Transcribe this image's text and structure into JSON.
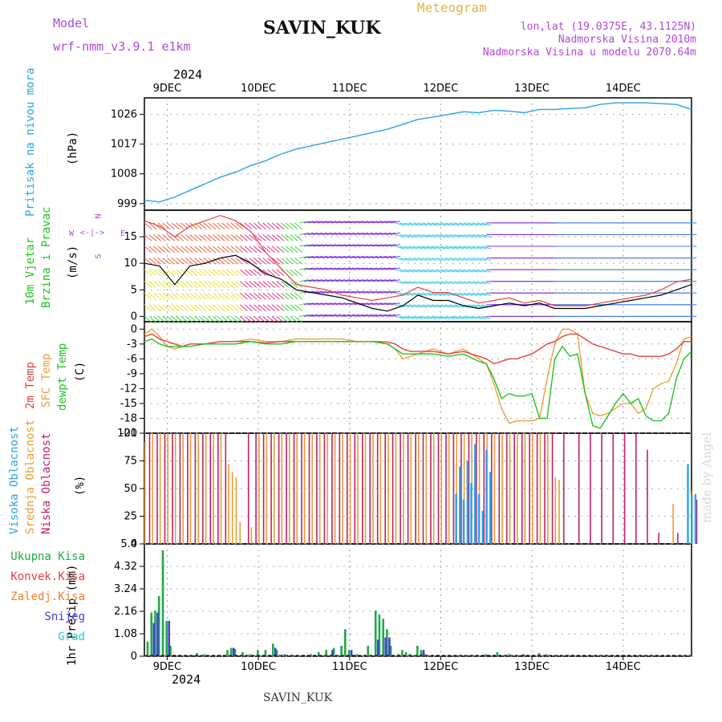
{
  "header": {
    "model_label": "Model",
    "model_name": "wrf-nmm_v3.9.1 e1km",
    "station": "SAVIN_KUK",
    "product": "Meteogram",
    "lonlat": "lon,lat (19.0375E, 43.1125N)",
    "elevation": "Nadmorska Visina 2010m",
    "model_elevation": "Nadmorska Visina u modelu 2070.64m",
    "year": "2024",
    "footer_station": "SAVIN_KUK",
    "watermark": "made by Angel"
  },
  "colors": {
    "pressure": "#2aa4e6",
    "temp2m": "#e84040",
    "sfctemp": "#e8a040",
    "dewpt": "#22c422",
    "high_cloud": "#2aa4e6",
    "mid_cloud": "#e8a030",
    "low_cloud": "#c0206a",
    "precip_total": "#22a848",
    "precip_conv": "#e84040",
    "precip_frozen": "#f08030",
    "snow": "#4040d8",
    "graupel": "#30c8c8",
    "purple_label": "#b04ad8"
  },
  "chart_data": [
    {
      "type": "line",
      "panel": "pressure",
      "ylabel_lines": [
        "Pritisak na nivou mora"
      ],
      "unit": "(hPa)",
      "ylim": [
        997,
        1031
      ],
      "yticks": [
        999,
        1008,
        1017,
        1026
      ],
      "x_hours": [
        0,
        4,
        8,
        12,
        16,
        20,
        24,
        28,
        32,
        36,
        40,
        44,
        48,
        52,
        56,
        60,
        64,
        68,
        72,
        76,
        80,
        84,
        88,
        92,
        96,
        100,
        104,
        108,
        112,
        116,
        120,
        124,
        132,
        140,
        144
      ],
      "values": [
        1000,
        999.5,
        1001,
        1003,
        1005,
        1007,
        1008.5,
        1010.5,
        1012,
        1014,
        1015.5,
        1016.5,
        1017.5,
        1018.5,
        1019.5,
        1020.5,
        1021.5,
        1023,
        1024.5,
        1025.2,
        1026,
        1026.8,
        1026.5,
        1027.2,
        1027,
        1026.5,
        1027.5,
        1027.5,
        1027.8,
        1028,
        1029,
        1029.5,
        1029.5,
        1029,
        1027.5
      ]
    },
    {
      "type": "line",
      "panel": "wind",
      "ylabel_lines": [
        "10m Vjetar",
        "Brzina i Pravac"
      ],
      "unit": "(m/s)",
      "compass": {
        "n": "N",
        "w": "W",
        "e": "E",
        "s": "S"
      },
      "ylim": [
        -1,
        20
      ],
      "yticks": [
        0,
        5,
        10,
        15
      ],
      "x_hours": [
        0,
        4,
        8,
        12,
        16,
        20,
        24,
        28,
        32,
        36,
        40,
        44,
        48,
        52,
        56,
        60,
        64,
        68,
        72,
        76,
        80,
        84,
        88,
        92,
        96,
        100,
        104,
        108,
        112,
        116,
        120,
        124,
        128,
        132,
        136,
        140,
        144
      ],
      "speed_black": [
        10,
        9.5,
        6,
        9.5,
        10,
        11,
        11.5,
        10,
        8,
        7,
        5,
        4.5,
        4,
        3.5,
        2.5,
        1.5,
        1,
        2,
        4,
        3,
        3,
        2,
        1.5,
        2,
        2.5,
        2,
        2.5,
        1.5,
        1.5,
        1.5,
        2,
        2.5,
        3,
        3.5,
        4,
        5,
        6
      ],
      "speed_red": [
        18,
        17,
        15,
        17,
        18,
        19,
        18,
        16,
        12,
        9,
        6,
        5.5,
        5,
        4,
        3.5,
        3,
        3.5,
        4,
        5.5,
        4.5,
        4.5,
        3.5,
        2.5,
        3,
        3.5,
        2.5,
        3,
        2,
        2,
        2,
        2.5,
        3,
        3.5,
        4,
        5,
        6.5,
        7
      ]
    },
    {
      "type": "line",
      "panel": "temperature",
      "ylabel_lines": [
        "2m Temp",
        "SFC Temp",
        "dewpt Temp"
      ],
      "unit": "(C)",
      "ylim": [
        -21,
        1.5
      ],
      "yticks": [
        0,
        -3,
        -6,
        -9,
        -12,
        -15,
        -18,
        -21
      ],
      "x_hours": [
        0,
        2,
        4,
        6,
        8,
        10,
        12,
        16,
        20,
        24,
        28,
        32,
        36,
        40,
        44,
        48,
        52,
        56,
        60,
        64,
        66,
        68,
        70,
        72,
        76,
        80,
        84,
        88,
        90,
        92,
        94,
        96,
        98,
        100,
        102,
        104,
        106,
        108,
        110,
        112,
        114,
        116,
        118,
        120,
        122,
        124,
        126,
        128,
        130,
        132,
        134,
        136,
        138,
        140,
        142,
        144
      ],
      "t2m": [
        -1.5,
        -1,
        -2,
        -2.5,
        -3,
        -3.5,
        -3,
        -3,
        -2.5,
        -2.5,
        -2.5,
        -2.8,
        -2.5,
        -2.5,
        -2.5,
        -2.5,
        -2.5,
        -2.5,
        -2.5,
        -2.6,
        -3,
        -4,
        -4.5,
        -4.5,
        -4.5,
        -5,
        -4.5,
        -5.5,
        -6,
        -7,
        -6.5,
        -6,
        -6,
        -5.5,
        -5,
        -4,
        -3,
        -2.5,
        -1.5,
        -1,
        -1,
        -2,
        -3,
        -3.5,
        -4,
        -4.5,
        -5,
        -5,
        -5.5,
        -5.5,
        -5.5,
        -5.5,
        -5,
        -4,
        -2.5,
        -2.5
      ],
      "sfc": [
        -1,
        0,
        -1.5,
        -3.5,
        -4,
        -3.5,
        -3,
        -3,
        -2.5,
        -2.5,
        -2,
        -2.5,
        -2.5,
        -2,
        -2,
        -2,
        -2,
        -2.5,
        -2.5,
        -3,
        -4,
        -6,
        -5.5,
        -5,
        -4,
        -5,
        -4,
        -6,
        -7,
        -11,
        -16,
        -19,
        -18.5,
        -18.5,
        -18.5,
        -18,
        -10,
        -3,
        0,
        0,
        -1,
        -13,
        -17,
        -17.5,
        -17,
        -16,
        -15,
        -15,
        -17,
        -16,
        -12,
        -11,
        -10.5,
        -7,
        -2,
        -1.5
      ],
      "dewpt": [
        -2.5,
        -2,
        -3,
        -3.5,
        -3.5,
        -3.5,
        -3.5,
        -3,
        -3,
        -3,
        -2.5,
        -3,
        -3,
        -2.5,
        -2.5,
        -2.5,
        -2.5,
        -2.5,
        -2.5,
        -3,
        -4,
        -5,
        -5,
        -5,
        -5,
        -5.5,
        -5,
        -6.5,
        -7,
        -10,
        -14,
        -13,
        -13.5,
        -13.5,
        -13,
        -18,
        -18,
        -6,
        -3.5,
        -5.5,
        -5,
        -13,
        -19.5,
        -20,
        -17.5,
        -15,
        -13,
        -15,
        -14,
        -17.5,
        -18.5,
        -18.5,
        -17,
        -10,
        -6,
        -4.5
      ]
    },
    {
      "type": "bar",
      "panel": "cloud",
      "ylabel_lines": [
        "Visoka Oblacnost",
        "Srednja Oblacnost",
        "Niska Oblacnost"
      ],
      "unit": "(%)",
      "ylim": [
        0,
        100
      ],
      "yticks": [
        0,
        25,
        50,
        75,
        100
      ],
      "high": [
        [
          82,
          45
        ],
        [
          83,
          70
        ],
        [
          84,
          40
        ],
        [
          85,
          75
        ],
        [
          86,
          55
        ],
        [
          87,
          90
        ],
        [
          88,
          45
        ],
        [
          89,
          30
        ],
        [
          90,
          85
        ],
        [
          91,
          65
        ],
        [
          143,
          72
        ],
        [
          144,
          44
        ],
        [
          145,
          45
        ]
      ],
      "mid": [
        [
          0,
          92
        ],
        [
          2,
          100
        ],
        [
          4,
          100
        ],
        [
          6,
          100
        ],
        [
          8,
          100
        ],
        [
          10,
          100
        ],
        [
          12,
          100
        ],
        [
          14,
          100
        ],
        [
          16,
          100
        ],
        [
          18,
          100
        ],
        [
          20,
          100
        ],
        [
          22,
          72
        ],
        [
          23,
          65
        ],
        [
          24,
          60
        ],
        [
          25,
          20
        ],
        [
          28,
          15
        ],
        [
          30,
          100
        ],
        [
          32,
          100
        ],
        [
          34,
          100
        ],
        [
          36,
          100
        ],
        [
          38,
          100
        ],
        [
          40,
          100
        ],
        [
          42,
          100
        ],
        [
          44,
          100
        ],
        [
          46,
          100
        ],
        [
          48,
          100
        ],
        [
          50,
          100
        ],
        [
          52,
          100
        ],
        [
          54,
          100
        ],
        [
          56,
          100
        ],
        [
          58,
          100
        ],
        [
          60,
          100
        ],
        [
          62,
          100
        ],
        [
          64,
          100
        ],
        [
          66,
          100
        ],
        [
          68,
          100
        ],
        [
          70,
          100
        ],
        [
          72,
          100
        ],
        [
          74,
          100
        ],
        [
          76,
          100
        ],
        [
          78,
          100
        ],
        [
          80,
          100
        ],
        [
          82,
          100
        ],
        [
          84,
          100
        ],
        [
          86,
          100
        ],
        [
          88,
          100
        ],
        [
          90,
          100
        ],
        [
          92,
          100
        ],
        [
          94,
          100
        ],
        [
          96,
          100
        ],
        [
          98,
          100
        ],
        [
          100,
          100
        ],
        [
          102,
          100
        ],
        [
          104,
          100
        ],
        [
          106,
          100
        ],
        [
          108,
          60
        ],
        [
          109,
          58
        ],
        [
          139,
          36
        ],
        [
          144,
          48
        ]
      ],
      "low": [
        [
          1,
          100
        ],
        [
          3,
          100
        ],
        [
          5,
          100
        ],
        [
          7,
          100
        ],
        [
          9,
          100
        ],
        [
          11,
          100
        ],
        [
          13,
          100
        ],
        [
          15,
          100
        ],
        [
          17,
          100
        ],
        [
          19,
          100
        ],
        [
          21,
          100
        ],
        [
          27,
          100
        ],
        [
          29,
          100
        ],
        [
          31,
          100
        ],
        [
          33,
          100
        ],
        [
          35,
          100
        ],
        [
          37,
          100
        ],
        [
          39,
          100
        ],
        [
          41,
          100
        ],
        [
          43,
          100
        ],
        [
          45,
          100
        ],
        [
          47,
          100
        ],
        [
          49,
          100
        ],
        [
          51,
          100
        ],
        [
          53,
          100
        ],
        [
          55,
          100
        ],
        [
          57,
          100
        ],
        [
          59,
          100
        ],
        [
          61,
          100
        ],
        [
          63,
          100
        ],
        [
          65,
          100
        ],
        [
          67,
          100
        ],
        [
          69,
          100
        ],
        [
          71,
          100
        ],
        [
          73,
          100
        ],
        [
          75,
          100
        ],
        [
          77,
          100
        ],
        [
          79,
          100
        ],
        [
          81,
          100
        ],
        [
          83,
          100
        ],
        [
          85,
          100
        ],
        [
          87,
          100
        ],
        [
          89,
          100
        ],
        [
          91,
          100
        ],
        [
          93,
          100
        ],
        [
          95,
          100
        ],
        [
          97,
          100
        ],
        [
          99,
          100
        ],
        [
          101,
          100
        ],
        [
          103,
          100
        ],
        [
          105,
          100
        ],
        [
          107,
          100
        ],
        [
          110,
          100
        ],
        [
          114,
          100
        ],
        [
          117,
          100
        ],
        [
          120,
          100
        ],
        [
          123,
          100
        ],
        [
          126,
          100
        ],
        [
          129,
          100
        ],
        [
          132,
          85
        ],
        [
          135,
          10
        ],
        [
          140,
          10
        ],
        [
          145,
          40
        ]
      ]
    },
    {
      "type": "bar",
      "panel": "precip",
      "ylabel_lines": [
        "1hr Precip (mm)"
      ],
      "legend_labels": [
        "Ukupna Kisa",
        "Konvek.Kisa",
        "Zaledj.Kisa",
        "Snijeg",
        "Grad"
      ],
      "ylim": [
        0,
        5.4
      ],
      "yticks": [
        0,
        1.08,
        2.16,
        3.24,
        4.32,
        5.4
      ],
      "total": [
        [
          1,
          0.7
        ],
        [
          2,
          2.1
        ],
        [
          3,
          2.2
        ],
        [
          4,
          2.9
        ],
        [
          5,
          5.1
        ],
        [
          6,
          1.7
        ],
        [
          7,
          0.5
        ],
        [
          14,
          0.15
        ],
        [
          16,
          0.1
        ],
        [
          22,
          0.3
        ],
        [
          23,
          0.4
        ],
        [
          24,
          0.35
        ],
        [
          26,
          0.2
        ],
        [
          28,
          0.1
        ],
        [
          30,
          0.3
        ],
        [
          32,
          0.3
        ],
        [
          34,
          0.6
        ],
        [
          35,
          0.3
        ],
        [
          37,
          0.1
        ],
        [
          44,
          0.1
        ],
        [
          46,
          0.2
        ],
        [
          48,
          0.3
        ],
        [
          50,
          0.4
        ],
        [
          52,
          0.5
        ],
        [
          53,
          1.3
        ],
        [
          54,
          0.3
        ],
        [
          56,
          0.1
        ],
        [
          59,
          0.5
        ],
        [
          61,
          2.2
        ],
        [
          62,
          2.0
        ],
        [
          63,
          1.8
        ],
        [
          64,
          1.3
        ],
        [
          65,
          0.5
        ],
        [
          67,
          0.1
        ],
        [
          68,
          0.3
        ],
        [
          69,
          0.2
        ],
        [
          70,
          0.1
        ],
        [
          72,
          0.5
        ],
        [
          73,
          0.3
        ],
        [
          74,
          0.1
        ],
        [
          90,
          0.1
        ],
        [
          93,
          0.2
        ],
        [
          96,
          0.1
        ],
        [
          100,
          0.1
        ],
        [
          104,
          0.15
        ],
        [
          106,
          0.1
        ]
      ],
      "snow": [
        [
          2,
          1.6
        ],
        [
          3,
          2.1
        ],
        [
          6,
          1.7
        ],
        [
          23,
          0.4
        ],
        [
          34,
          0.4
        ],
        [
          49,
          0.3
        ],
        [
          54,
          0.3
        ],
        [
          61,
          0.8
        ],
        [
          63,
          0.9
        ],
        [
          64,
          0.9
        ],
        [
          73,
          0.3
        ]
      ]
    }
  ],
  "axis": {
    "start_hour": 0,
    "end_hour": 144,
    "day_labels": [
      "9DEC",
      "10DEC",
      "11DEC",
      "12DEC",
      "13DEC",
      "14DEC"
    ]
  }
}
